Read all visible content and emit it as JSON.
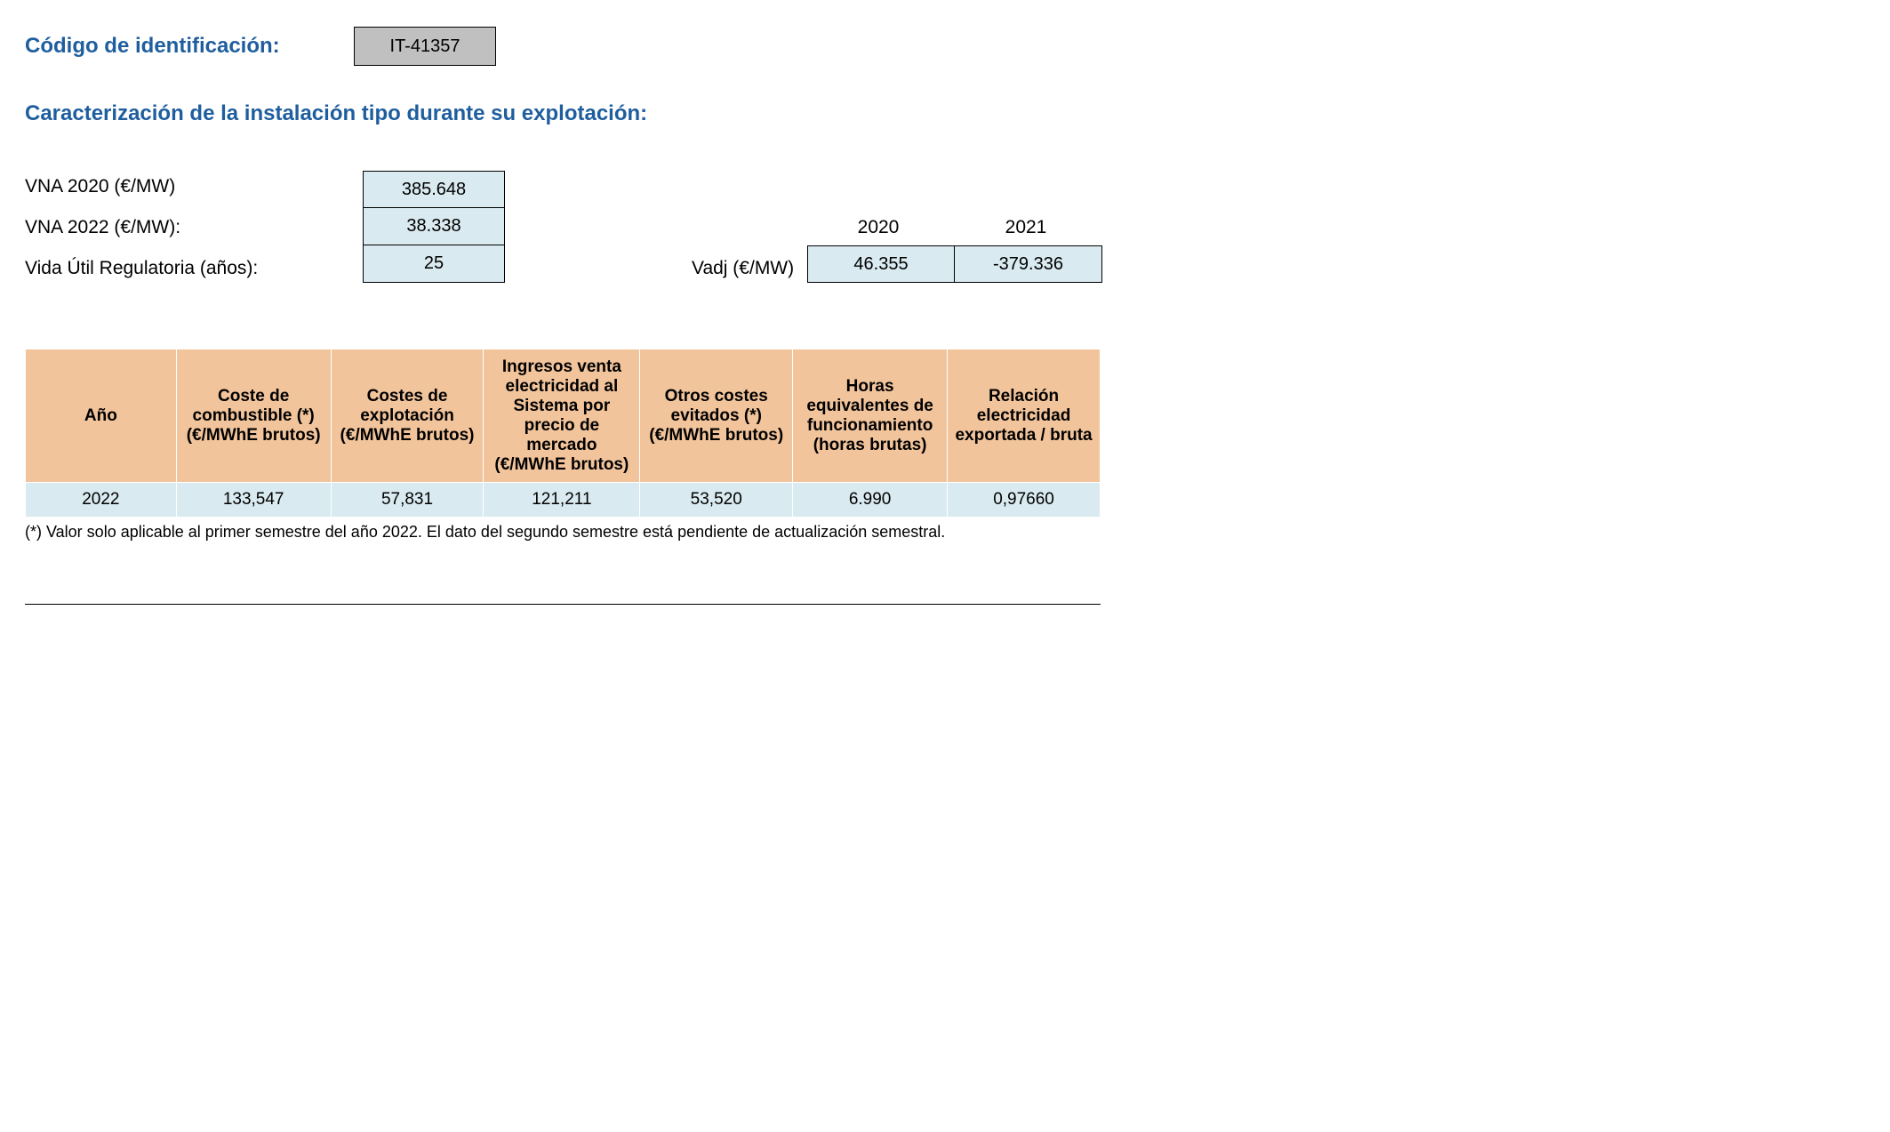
{
  "header": {
    "id_label": "Código de identificación:",
    "id_value": "IT-41357"
  },
  "section_title": "Caracterización de la instalación tipo durante su explotación:",
  "params": {
    "vna2020_label": "VNA 2020 (€/MW)",
    "vna2020_value": "385.648",
    "vna2022_label": "VNA 2022 (€/MW):",
    "vna2022_value": "38.338",
    "vida_label": "Vida Útil Regulatoria (años):",
    "vida_value": "25"
  },
  "vadj": {
    "label": "Vadj (€/MW)",
    "years": {
      "y2020": "2020",
      "y2021": "2021"
    },
    "values": {
      "v2020": "46.355",
      "v2021": "-379.336"
    }
  },
  "table": {
    "headers": {
      "c0": "Año",
      "c1": "Coste de combustible (*) (€/MWhE brutos)",
      "c2": "Costes de explotación (€/MWhE brutos)",
      "c3": "Ingresos venta electricidad al Sistema por precio de mercado (€/MWhE brutos)",
      "c4": "Otros costes evitados (*) (€/MWhE brutos)",
      "c5": "Horas equivalentes de funcionamiento (horas brutas)",
      "c6": "Relación electricidad exportada / bruta"
    },
    "row": {
      "c0": "2022",
      "c1": "133,547",
      "c2": "57,831",
      "c3": "121,211",
      "c4": "53,520",
      "c5": "6.990",
      "c6": "0,97660"
    }
  },
  "footnote": "(*) Valor solo aplicable al primer semestre del año 2022. El dato del segundo semestre está pendiente de actualización semestral.",
  "colors": {
    "heading": "#1f5e9e",
    "id_box_bg": "#c0c0c0",
    "value_box_bg": "#d9eaf0",
    "table_header_bg": "#f2c49b",
    "table_cell_bg": "#d9eaf0",
    "border": "#000000",
    "cell_border": "#ffffff"
  }
}
